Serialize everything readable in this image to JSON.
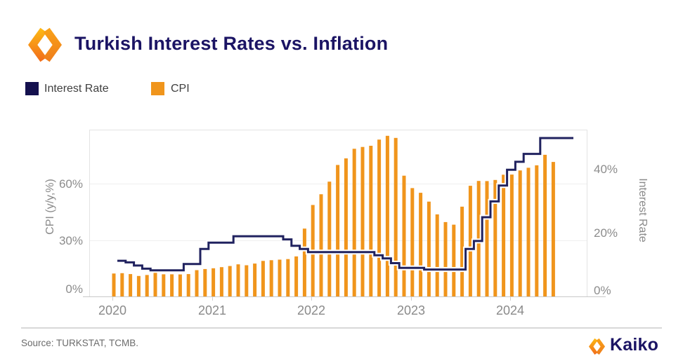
{
  "header": {
    "title": "Turkish Interest Rates vs. Inflation"
  },
  "legend": {
    "items": [
      {
        "label": "Interest Rate",
        "color": "#14104E"
      },
      {
        "label": "CPI",
        "color": "#F0951C"
      }
    ]
  },
  "chart_data": {
    "type": "bar+step-line combo",
    "title": "Turkish Interest Rates vs. Inflation",
    "x_start": "2020-01",
    "x_frequency": "monthly",
    "x_tick_labels": [
      "2020",
      "2021",
      "2022",
      "2023",
      "2024"
    ],
    "grid": "horizontal gridlines at left-axis 30% and 60% only",
    "legend_position": "top-left above plot",
    "left_axis": {
      "label": "CPI (y/y,%)",
      "tick_labels": [
        "0%",
        "30%",
        "60%"
      ],
      "tick_values": [
        0,
        30,
        60
      ],
      "range": [
        0,
        88.8
      ]
    },
    "right_axis": {
      "label": "Interest Rate",
      "tick_labels": [
        "0%",
        "20%",
        "40%"
      ],
      "tick_values": [
        0,
        20,
        40
      ],
      "range": [
        0,
        52.65
      ]
    },
    "series": [
      {
        "name": "CPI",
        "type": "bar",
        "axis": "left",
        "color": "#F0951C",
        "start": "2020-01",
        "values": [
          12.2,
          12.4,
          11.9,
          10.9,
          11.4,
          12.6,
          11.8,
          11.8,
          11.7,
          11.9,
          14.0,
          14.6,
          15.0,
          15.6,
          16.2,
          17.1,
          16.6,
          17.5,
          18.9,
          19.3,
          19.6,
          19.9,
          21.3,
          36.1,
          48.7,
          54.4,
          61.1,
          70.0,
          73.5,
          78.6,
          79.6,
          80.2,
          83.5,
          85.5,
          84.4,
          64.3,
          57.7,
          55.2,
          50.5,
          43.7,
          39.6,
          38.2,
          47.8,
          58.9,
          61.5,
          61.4,
          62.0,
          64.8,
          64.9,
          67.1,
          68.5,
          69.8,
          75.4,
          71.6
        ]
      },
      {
        "name": "Interest Rate",
        "type": "step_line",
        "axis": "right",
        "color": "#20225F",
        "halo_color": "#FFFFFF",
        "start": "2020-01",
        "values": [
          11.25,
          10.75,
          9.75,
          8.75,
          8.25,
          8.25,
          8.25,
          8.25,
          10.25,
          10.25,
          15.0,
          17.0,
          17.0,
          17.0,
          19.0,
          19.0,
          19.0,
          19.0,
          19.0,
          19.0,
          18.0,
          16.0,
          15.0,
          14.0,
          14.0,
          14.0,
          14.0,
          14.0,
          14.0,
          14.0,
          14.0,
          13.0,
          12.0,
          10.5,
          9.0,
          9.0,
          9.0,
          8.5,
          8.5,
          8.5,
          8.5,
          8.5,
          15.0,
          17.5,
          25.0,
          30.0,
          35.0,
          40.0,
          42.5,
          45.0,
          45.0,
          50.0,
          50.0,
          50.0,
          50.0,
          50.0
        ]
      }
    ]
  },
  "footer": {
    "source": "Source: TURKSTAT, TCMB.",
    "brand_name": "Kaiko"
  },
  "colors": {
    "title_navy": "#1B1464",
    "bar_orange": "#F0951C",
    "line_navy": "#20225F",
    "axis_text_gray": "#8A8A8A",
    "gridline": "#EFEFEF"
  }
}
